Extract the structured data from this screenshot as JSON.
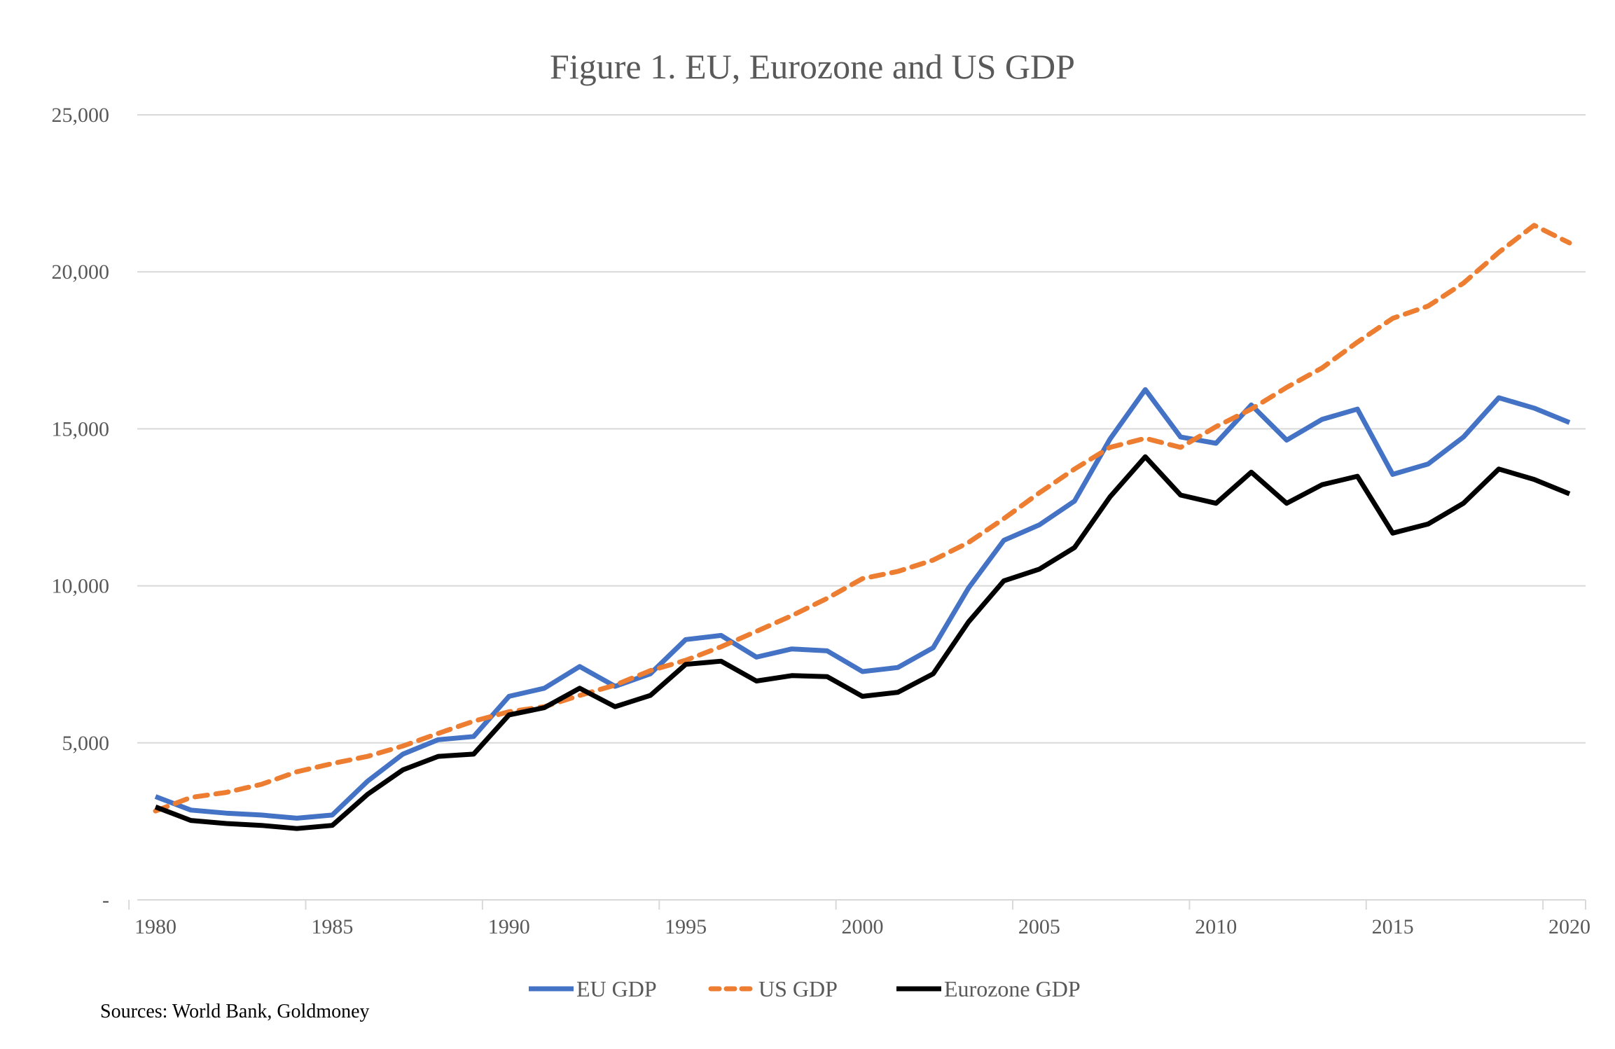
{
  "chart_data": {
    "type": "line",
    "title": "Figure 1. EU, Eurozone and US GDP",
    "xlabel": "",
    "ylabel": "",
    "ylim": [
      0,
      25000
    ],
    "y_ticks": [
      0,
      5000,
      10000,
      15000,
      20000,
      25000
    ],
    "y_tick_labels": [
      "-",
      "5,000",
      "10,000",
      "15,000",
      "20,000",
      "25,000"
    ],
    "x_tick_labels": [
      "1980",
      "1985",
      "1990",
      "1995",
      "2000",
      "2005",
      "2010",
      "2015",
      "2020"
    ],
    "x": [
      1980,
      1981,
      1982,
      1983,
      1984,
      1985,
      1986,
      1987,
      1988,
      1989,
      1990,
      1991,
      1992,
      1993,
      1994,
      1995,
      1996,
      1997,
      1998,
      1999,
      2000,
      2001,
      2002,
      2003,
      2004,
      2005,
      2006,
      2007,
      2008,
      2009,
      2010,
      2011,
      2012,
      2013,
      2014,
      2015,
      2016,
      2017,
      2018,
      2019,
      2020
    ],
    "grid": true,
    "legend_position": "bottom",
    "series": [
      {
        "name": "EU GDP",
        "color": "#4472C4",
        "dash": "solid",
        "values": [
          3290,
          2860,
          2760,
          2700,
          2600,
          2700,
          3780,
          4640,
          5100,
          5200,
          6480,
          6740,
          7430,
          6800,
          7200,
          8290,
          8420,
          7730,
          7990,
          7930,
          7270,
          7400,
          8030,
          9930,
          11450,
          11940,
          12700,
          14670,
          16250,
          14740,
          14540,
          15760,
          14640,
          15300,
          15630,
          13550,
          13880,
          14740,
          15990,
          15660,
          15200
        ]
      },
      {
        "name": "US GDP",
        "color": "#ED7D31",
        "dash": "dashed",
        "values": [
          2830,
          3260,
          3420,
          3680,
          4080,
          4340,
          4570,
          4900,
          5300,
          5690,
          5990,
          6150,
          6510,
          6840,
          7300,
          7630,
          8060,
          8550,
          9050,
          9600,
          10230,
          10460,
          10820,
          11380,
          12140,
          12960,
          13720,
          14410,
          14700,
          14410,
          15070,
          15630,
          16320,
          16940,
          17760,
          18520,
          18910,
          19640,
          20620,
          21480,
          20920
        ]
      },
      {
        "name": "Eurozone GDP",
        "color": "#000000",
        "dash": "solid",
        "values": [
          2960,
          2530,
          2430,
          2370,
          2270,
          2370,
          3360,
          4140,
          4570,
          4640,
          5890,
          6120,
          6740,
          6150,
          6510,
          7500,
          7600,
          6970,
          7140,
          7110,
          6480,
          6610,
          7200,
          8850,
          10160,
          10530,
          11220,
          12830,
          14110,
          12890,
          12630,
          13620,
          12630,
          13220,
          13490,
          11680,
          11970,
          12630,
          13720,
          13390,
          12930
        ]
      }
    ],
    "source_note": "Sources: World Bank, Goldmoney"
  }
}
